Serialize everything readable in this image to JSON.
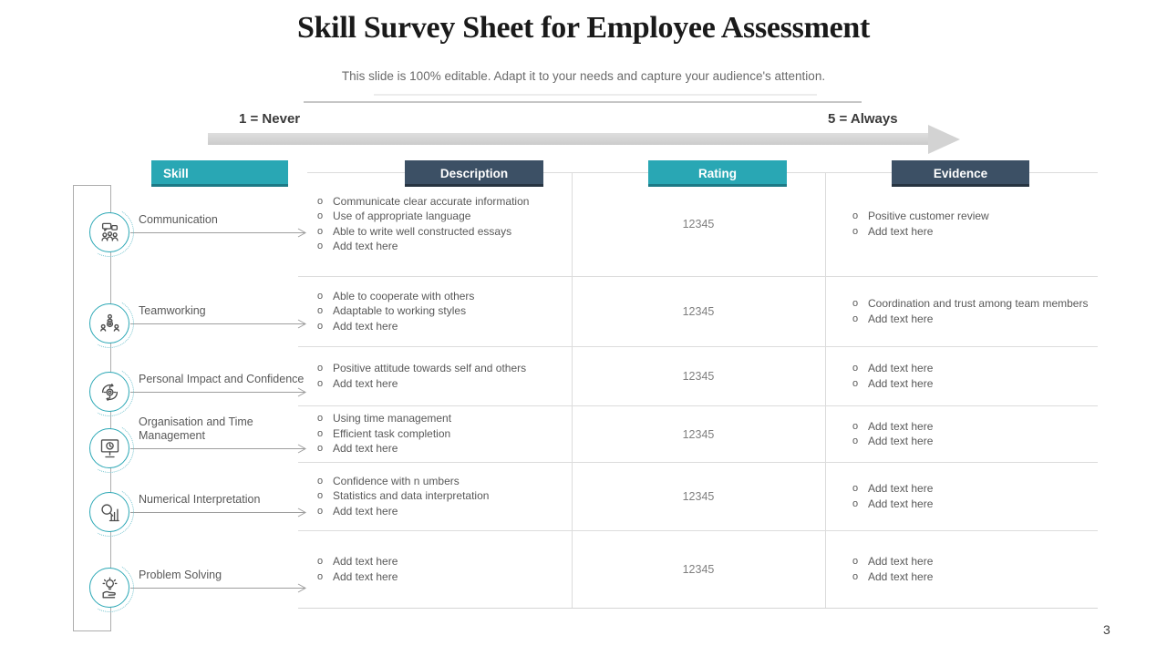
{
  "page": {
    "title": "Skill Survey Sheet for Employee Assessment",
    "subtitle": "This slide is 100% editable. Adapt it to your needs and capture your audience's attention.",
    "page_number": "3"
  },
  "scale": {
    "left_label": "1 = Never",
    "right_label": "5 = Always"
  },
  "colors": {
    "teal": "#29a7b4",
    "navy": "#3c5065",
    "arrow_gray": "#d3d3d3",
    "grid_gray": "#dcdcdc",
    "text_gray": "#595959"
  },
  "table": {
    "headers": [
      {
        "label": "Skill",
        "style": "teal"
      },
      {
        "label": "Description",
        "style": "navy"
      },
      {
        "label": "Rating",
        "style": "teal"
      },
      {
        "label": "Evidence",
        "style": "navy"
      }
    ],
    "rows": [
      {
        "skill": "Communication",
        "icon": "communication-icon",
        "description": [
          "Communicate clear accurate information",
          "Use of appropriate language",
          "Able to write well constructed essays",
          "Add text here"
        ],
        "rating": "12345",
        "evidence": [
          "Positive customer review",
          "Add text here"
        ]
      },
      {
        "skill": "Teamworking",
        "icon": "teamwork-icon",
        "description": [
          "Able to cooperate with others",
          "Adaptable to working styles",
          "Add text here"
        ],
        "rating": "12345",
        "evidence": [
          "Coordination and trust among team members",
          "Add text here"
        ]
      },
      {
        "skill": "Personal Impact and Confidence",
        "icon": "gear-cycle-icon",
        "description": [
          "Positive attitude towards self and others",
          "Add text here"
        ],
        "rating": "12345",
        "evidence": [
          "Add text here",
          "Add text here"
        ]
      },
      {
        "skill": "Organisation and Time Management",
        "icon": "monitor-clock-icon",
        "description": [
          "Using time management",
          "Efficient task completion",
          "Add text here"
        ],
        "rating": "12345",
        "evidence": [
          "Add text here",
          "Add text here"
        ]
      },
      {
        "skill": "Numerical Interpretation",
        "icon": "magnifier-chart-icon",
        "description": [
          "Confidence with n umbers",
          "Statistics and data interpretation",
          "Add text here"
        ],
        "rating": "12345",
        "evidence": [
          "Add text here",
          "Add text here"
        ]
      },
      {
        "skill": "Problem Solving",
        "icon": "hand-bulb-icon",
        "description": [
          "Add text here",
          "Add text here"
        ],
        "rating": "12345",
        "evidence": [
          "Add text here",
          "Add text here"
        ]
      }
    ]
  }
}
